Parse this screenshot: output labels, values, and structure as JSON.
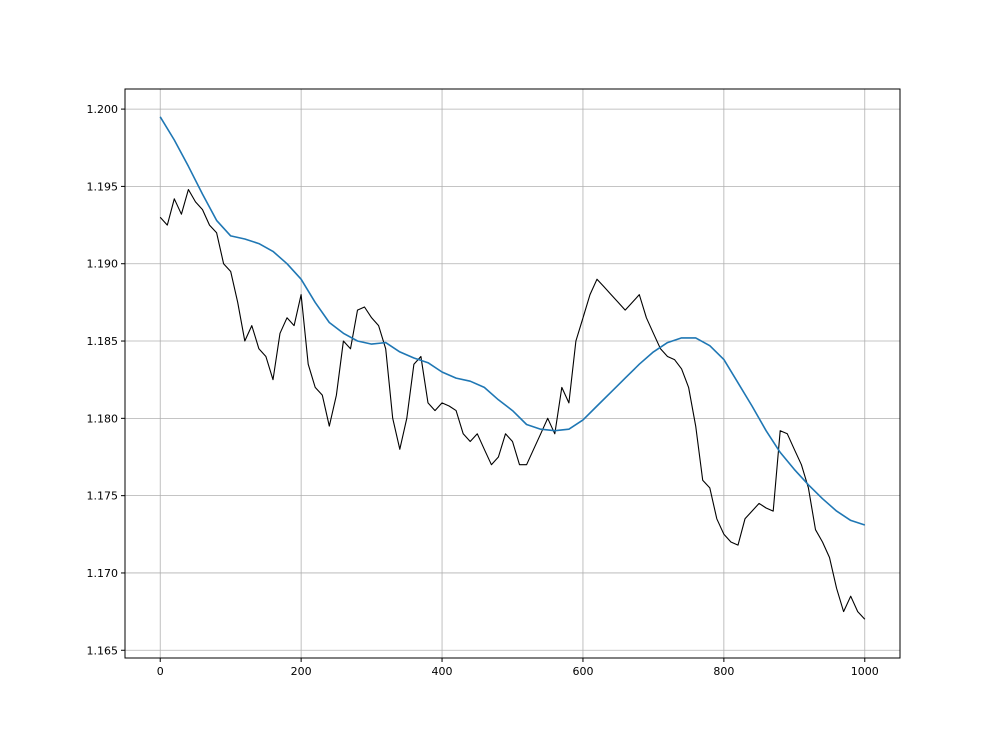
{
  "chart_data": {
    "type": "line",
    "title": "",
    "xlabel": "",
    "ylabel": "",
    "xlim": [
      -50,
      1050
    ],
    "ylim": [
      1.1645,
      1.2013
    ],
    "grid": true,
    "x_ticks": [
      0,
      200,
      400,
      600,
      800,
      1000
    ],
    "x_tick_labels": [
      "0",
      "200",
      "400",
      "600",
      "800",
      "1000"
    ],
    "y_ticks": [
      1.165,
      1.17,
      1.175,
      1.18,
      1.185,
      1.19,
      1.195,
      1.2
    ],
    "y_tick_labels": [
      "1.165",
      "1.170",
      "1.175",
      "1.180",
      "1.185",
      "1.190",
      "1.195",
      "1.200"
    ],
    "colors": {
      "price": "#000000",
      "moving_average": "#1f77b4",
      "grid": "#b0b0b0",
      "axes": "#000000"
    },
    "series": [
      {
        "key": "price",
        "x": [
          0,
          10,
          20,
          30,
          40,
          50,
          60,
          70,
          80,
          90,
          100,
          110,
          120,
          130,
          140,
          150,
          160,
          170,
          180,
          190,
          200,
          210,
          220,
          230,
          240,
          250,
          260,
          270,
          280,
          290,
          300,
          310,
          320,
          330,
          340,
          350,
          360,
          370,
          380,
          390,
          400,
          410,
          420,
          430,
          440,
          450,
          460,
          470,
          480,
          490,
          500,
          510,
          520,
          530,
          540,
          550,
          560,
          570,
          580,
          590,
          600,
          610,
          620,
          630,
          640,
          650,
          660,
          670,
          680,
          690,
          700,
          710,
          720,
          730,
          740,
          750,
          760,
          770,
          780,
          790,
          800,
          810,
          820,
          830,
          840,
          850,
          860,
          870,
          880,
          890,
          900,
          910,
          920,
          930,
          940,
          950,
          960,
          970,
          980,
          990,
          1000
        ],
        "y": [
          1.193,
          1.1925,
          1.1942,
          1.1932,
          1.1948,
          1.194,
          1.1935,
          1.1925,
          1.192,
          1.19,
          1.1895,
          1.1875,
          1.185,
          1.186,
          1.1845,
          1.184,
          1.1825,
          1.1855,
          1.1865,
          1.186,
          1.188,
          1.1835,
          1.182,
          1.1815,
          1.1795,
          1.1815,
          1.185,
          1.1845,
          1.187,
          1.1872,
          1.1865,
          1.186,
          1.1845,
          1.18,
          1.178,
          1.18,
          1.1835,
          1.184,
          1.181,
          1.1805,
          1.181,
          1.1808,
          1.1805,
          1.179,
          1.1785,
          1.179,
          1.178,
          1.177,
          1.1775,
          1.179,
          1.1785,
          1.177,
          1.177,
          1.178,
          1.179,
          1.18,
          1.179,
          1.182,
          1.181,
          1.185,
          1.1865,
          1.188,
          1.189,
          1.1885,
          1.188,
          1.1875,
          1.187,
          1.1875,
          1.188,
          1.1865,
          1.1855,
          1.1845,
          1.184,
          1.1838,
          1.1832,
          1.182,
          1.1795,
          1.176,
          1.1755,
          1.1735,
          1.1725,
          1.172,
          1.1718,
          1.1735,
          1.174,
          1.1745,
          1.1742,
          1.174,
          1.1792,
          1.179,
          1.178,
          1.177,
          1.1755,
          1.1728,
          1.172,
          1.171,
          1.169,
          1.1675,
          1.1685,
          1.1675,
          1.167
        ]
      },
      {
        "key": "moving_average",
        "x": [
          0,
          20,
          40,
          60,
          80,
          100,
          120,
          140,
          160,
          180,
          200,
          220,
          240,
          260,
          280,
          300,
          320,
          340,
          360,
          380,
          400,
          420,
          440,
          460,
          480,
          500,
          520,
          540,
          560,
          580,
          600,
          620,
          640,
          660,
          680,
          700,
          720,
          740,
          760,
          780,
          800,
          820,
          840,
          860,
          880,
          900,
          920,
          940,
          960,
          980,
          1000
        ],
        "y": [
          1.1995,
          1.198,
          1.1963,
          1.1945,
          1.1928,
          1.1918,
          1.1916,
          1.1913,
          1.1908,
          1.19,
          1.189,
          1.1875,
          1.1862,
          1.1855,
          1.185,
          1.1848,
          1.1849,
          1.1843,
          1.1839,
          1.1836,
          1.183,
          1.1826,
          1.1824,
          1.182,
          1.1812,
          1.1805,
          1.1796,
          1.1793,
          1.1792,
          1.1793,
          1.1799,
          1.1808,
          1.1817,
          1.1826,
          1.1835,
          1.1843,
          1.1849,
          1.1852,
          1.1852,
          1.1847,
          1.1838,
          1.1823,
          1.1808,
          1.1792,
          1.1778,
          1.1767,
          1.1757,
          1.1748,
          1.174,
          1.1734,
          1.1731
        ]
      }
    ]
  }
}
